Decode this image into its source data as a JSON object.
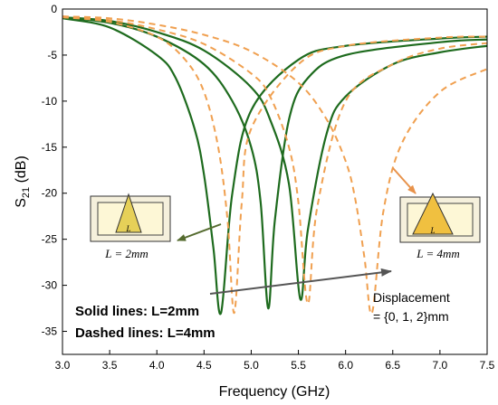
{
  "chart_data": {
    "type": "line",
    "xlabel": "Frequency (GHz)",
    "ylabel_main": "S",
    "ylabel_sub": "21",
    "ylabel_unit": " (dB)",
    "xlim": [
      3.0,
      7.5
    ],
    "ylim": [
      -37.5,
      0
    ],
    "xticks": [
      "3.0",
      "3.5",
      "4.0",
      "4.5",
      "5.0",
      "5.5",
      "6.0",
      "6.5",
      "7.0",
      "7.5"
    ],
    "yticks": [
      "0",
      "-5",
      "-10",
      "-15",
      "-20",
      "-25",
      "-30",
      "-35"
    ],
    "grid": false,
    "colors": {
      "solid": "#1e6b1e",
      "dashed": "#f0a050",
      "dashed_dip": "#b8b820",
      "arrow_left": "#556b2f",
      "arrow_right": "#e8924a",
      "arrow_long": "#555555"
    },
    "series": [
      {
        "style": "solid",
        "x": [
          3.0,
          3.5,
          4.0,
          4.2,
          4.4,
          4.5,
          4.6,
          4.68,
          4.8,
          5.0,
          5.5,
          6.0,
          7.0,
          7.5
        ],
        "y": [
          -1.0,
          -2.0,
          -5.0,
          -7.5,
          -13.0,
          -18.0,
          -26.0,
          -33.0,
          -20.0,
          -11.0,
          -5.5,
          -4.0,
          -3.2,
          -3.0
        ]
      },
      {
        "style": "solid",
        "x": [
          3.0,
          3.5,
          4.0,
          4.5,
          4.8,
          5.0,
          5.1,
          5.18,
          5.25,
          5.4,
          5.6,
          6.0,
          7.0,
          7.5
        ],
        "y": [
          -0.9,
          -1.5,
          -3.0,
          -6.0,
          -10.0,
          -15.0,
          -21.0,
          -32.5,
          -23.0,
          -12.0,
          -7.5,
          -5.0,
          -3.6,
          -3.3
        ]
      },
      {
        "style": "solid",
        "x": [
          3.0,
          3.5,
          4.0,
          4.5,
          5.0,
          5.2,
          5.4,
          5.52,
          5.6,
          5.8,
          6.0,
          6.5,
          7.0,
          7.5
        ],
        "y": [
          -0.9,
          -1.3,
          -2.5,
          -4.5,
          -8.5,
          -12.0,
          -19.0,
          -31.5,
          -24.0,
          -13.5,
          -9.5,
          -6.0,
          -4.7,
          -4.0
        ]
      },
      {
        "style": "dashed",
        "x": [
          3.0,
          3.5,
          4.0,
          4.3,
          4.5,
          4.65,
          4.75,
          4.82,
          4.9,
          5.0,
          5.5,
          6.0,
          7.0,
          7.5
        ],
        "y": [
          -0.9,
          -1.4,
          -3.0,
          -5.5,
          -9.0,
          -15.0,
          -23.0,
          -33.0,
          -21.0,
          -13.0,
          -6.0,
          -4.0,
          -3.1,
          -3.0
        ]
      },
      {
        "style": "dashed",
        "x": [
          3.0,
          3.5,
          4.0,
          4.5,
          5.0,
          5.2,
          5.4,
          5.5,
          5.6,
          5.7,
          6.0,
          6.5,
          7.0,
          7.5
        ],
        "y": [
          -0.8,
          -1.2,
          -2.2,
          -3.8,
          -7.0,
          -9.5,
          -15.0,
          -21.0,
          -32.0,
          -21.5,
          -10.0,
          -6.0,
          -4.3,
          -3.7
        ]
      },
      {
        "style": "dashed",
        "x": [
          3.0,
          3.5,
          4.0,
          4.5,
          5.0,
          5.5,
          5.8,
          6.0,
          6.1,
          6.2,
          6.28,
          6.4,
          6.6,
          7.0,
          7.5
        ],
        "y": [
          -0.8,
          -1.0,
          -1.7,
          -2.8,
          -4.6,
          -8.0,
          -12.0,
          -16.5,
          -20.5,
          -27.0,
          -33.0,
          -22.0,
          -14.5,
          -9.0,
          -6.5
        ]
      }
    ],
    "annotations": {
      "solid_note": "Solid lines: L=2mm",
      "dashed_note": "Dashed lines: L=4mm",
      "displacement_line1": "Displacement",
      "displacement_line2": "= {0, 1, 2}mm",
      "inset_left_label": "L = 2mm",
      "inset_right_label": "L = 4mm",
      "inset_symbol": "L"
    }
  }
}
